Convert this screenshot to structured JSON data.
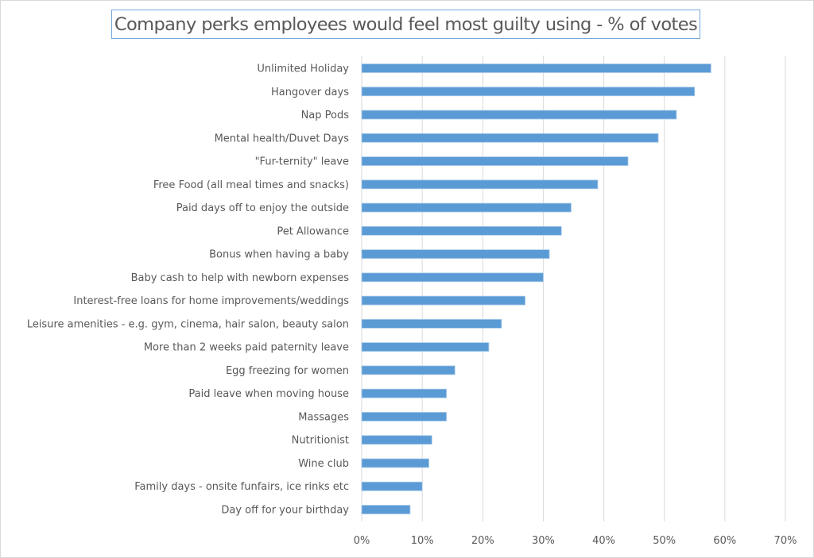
{
  "chart_data": {
    "type": "bar",
    "orientation": "horizontal",
    "title": "Company perks employees would feel most guilty using - % of votes",
    "xlabel": "",
    "ylabel": "",
    "xlim": [
      0,
      70
    ],
    "x_ticks": [
      0,
      10,
      20,
      30,
      40,
      50,
      60,
      70
    ],
    "x_tick_labels": [
      "0%",
      "10%",
      "20%",
      "30%",
      "40%",
      "50%",
      "60%",
      "70%"
    ],
    "grid": "vertical",
    "legend": "none",
    "bar_color": "#5b9bd5",
    "categories": [
      "Unlimited Holiday",
      "Hangover days",
      "Nap Pods",
      "Mental health/Duvet Days",
      "\"Fur-ternity\" leave",
      "Free Food (all meal times and snacks)",
      "Paid days off to enjoy the outside",
      "Pet Allowance",
      "Bonus when having a baby",
      "Baby cash to help with newborn expenses",
      "Interest-free loans for home improvements/weddings",
      "Leisure amenities - e.g. gym, cinema, hair salon, beauty salon",
      "More than 2 weeks paid paternity leave",
      "Egg freezing for women",
      "Paid leave when moving house",
      "Massages",
      "Nutritionist",
      "Wine club",
      "Family days - onsite funfairs, ice rinks etc",
      "Day off for your birthday"
    ],
    "values": [
      57.7,
      55.0,
      52.0,
      49.0,
      44.0,
      39.0,
      34.6,
      33.0,
      31.0,
      30.0,
      27.0,
      23.1,
      21.0,
      15.4,
      14.0,
      14.0,
      11.6,
      11.1,
      10.0,
      8.0
    ]
  }
}
